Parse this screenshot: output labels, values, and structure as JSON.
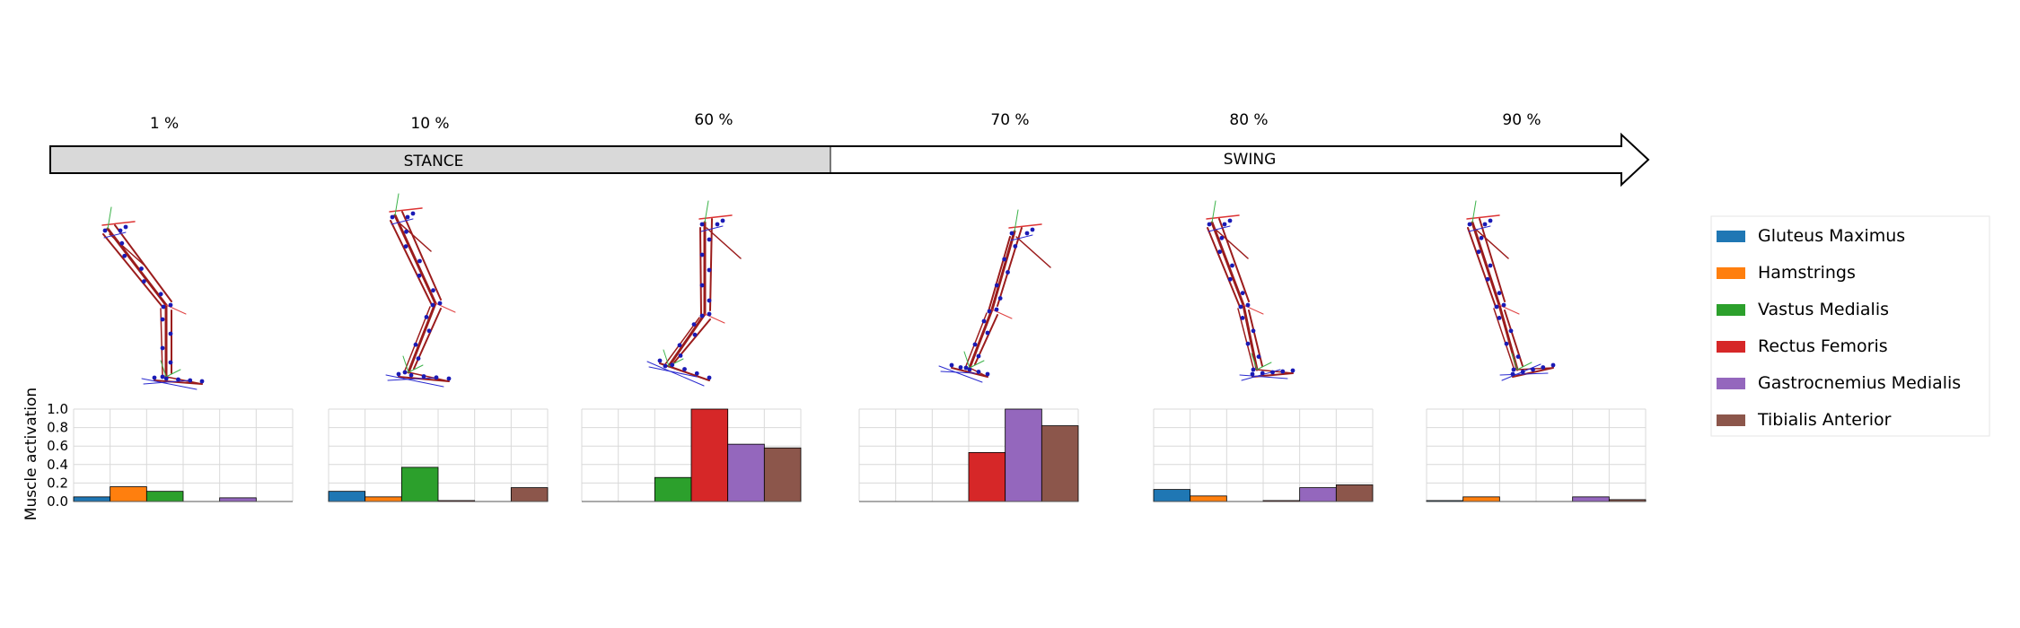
{
  "timeline": {
    "labels": [
      "1 %",
      "10 %",
      "60 %",
      "70 %",
      "80 %",
      "90 %"
    ],
    "stance_label": "STANCE",
    "swing_label": "SWING"
  },
  "ylabel": "Muscle activation",
  "yticks": [
    "1.0",
    "0.8",
    "0.6",
    "0.4",
    "0.2",
    "0.0"
  ],
  "legend": [
    {
      "label": "Gluteus Maximus",
      "color": "#1f77b4"
    },
    {
      "label": "Hamstrings",
      "color": "#ff7f0e"
    },
    {
      "label": "Vastus Medialis",
      "color": "#2ca02c"
    },
    {
      "label": "Rectus Femoris",
      "color": "#d62728"
    },
    {
      "label": "Gastrocnemius Medialis",
      "color": "#9467bd"
    },
    {
      "label": "Tibialis Anterior",
      "color": "#8c564b"
    }
  ],
  "chart_data": [
    {
      "type": "bar",
      "gait_cycle": "1 %",
      "categories": [
        "Gluteus Maximus",
        "Hamstrings",
        "Vastus Medialis",
        "Rectus Femoris",
        "Gastrocnemius Medialis",
        "Tibialis Anterior"
      ],
      "values": [
        0.05,
        0.16,
        0.11,
        0.0,
        0.04,
        0.0
      ],
      "ylim": [
        0,
        1
      ],
      "grid": true
    },
    {
      "type": "bar",
      "gait_cycle": "10 %",
      "categories": [
        "Gluteus Maximus",
        "Hamstrings",
        "Vastus Medialis",
        "Rectus Femoris",
        "Gastrocnemius Medialis",
        "Tibialis Anterior"
      ],
      "values": [
        0.11,
        0.05,
        0.37,
        0.01,
        0.0,
        0.15
      ],
      "ylim": [
        0,
        1
      ],
      "grid": true
    },
    {
      "type": "bar",
      "gait_cycle": "60 %",
      "categories": [
        "Gluteus Maximus",
        "Hamstrings",
        "Vastus Medialis",
        "Rectus Femoris",
        "Gastrocnemius Medialis",
        "Tibialis Anterior"
      ],
      "values": [
        0.0,
        0.0,
        0.26,
        1.0,
        0.62,
        0.58
      ],
      "ylim": [
        0,
        1
      ],
      "grid": true
    },
    {
      "type": "bar",
      "gait_cycle": "70 %",
      "categories": [
        "Gluteus Maximus",
        "Hamstrings",
        "Vastus Medialis",
        "Rectus Femoris",
        "Gastrocnemius Medialis",
        "Tibialis Anterior"
      ],
      "values": [
        0.0,
        0.0,
        0.0,
        0.53,
        1.0,
        0.82
      ],
      "ylim": [
        0,
        1
      ],
      "grid": true
    },
    {
      "type": "bar",
      "gait_cycle": "80 %",
      "categories": [
        "Gluteus Maximus",
        "Hamstrings",
        "Vastus Medialis",
        "Rectus Femoris",
        "Gastrocnemius Medialis",
        "Tibialis Anterior"
      ],
      "values": [
        0.13,
        0.06,
        0.0,
        0.01,
        0.15,
        0.18
      ],
      "ylim": [
        0,
        1
      ],
      "grid": true
    },
    {
      "type": "bar",
      "gait_cycle": "90 %",
      "categories": [
        "Gluteus Maximus",
        "Hamstrings",
        "Vastus Medialis",
        "Rectus Femoris",
        "Gastrocnemius Medialis",
        "Tibialis Anterior"
      ],
      "values": [
        0.01,
        0.05,
        0.0,
        0.0,
        0.05,
        0.02
      ],
      "ylim": [
        0,
        1
      ],
      "grid": true
    }
  ]
}
